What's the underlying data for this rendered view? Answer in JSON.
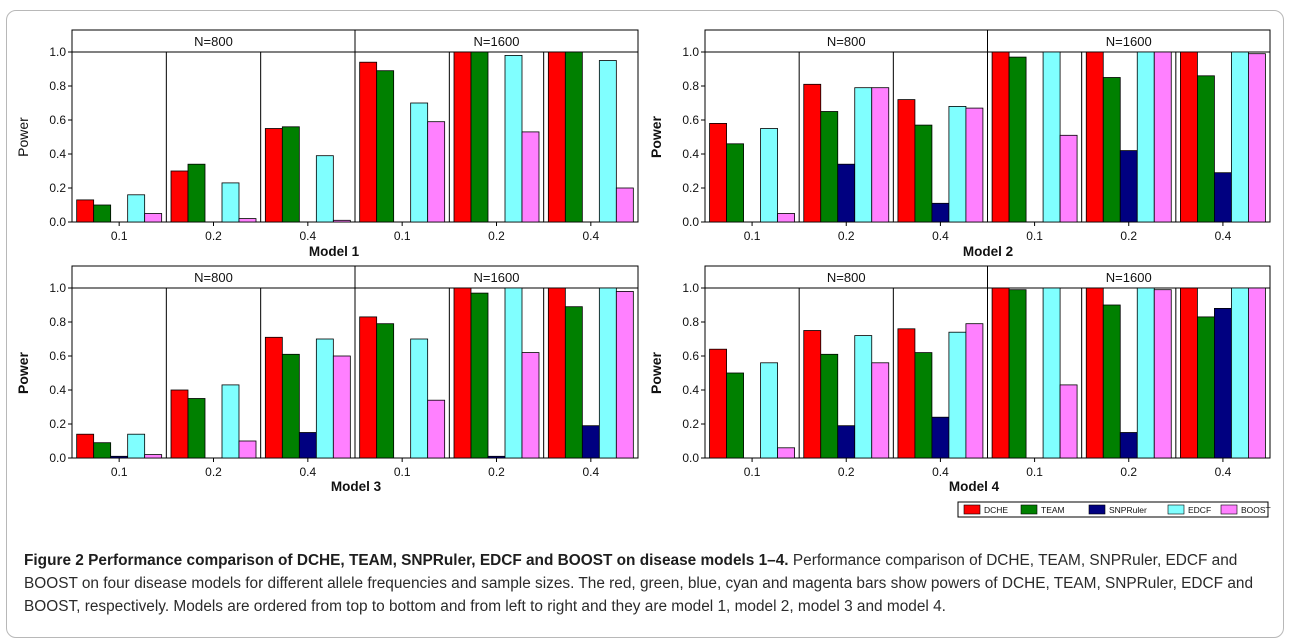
{
  "figure": {
    "caption_title": "Figure 2 Performance comparison of DCHE, TEAM, SNPRuler, EDCF and BOOST on disease models 1–4.",
    "caption_text": "Performance comparison of DCHE, TEAM, SNPRuler, EDCF and BOOST on four disease models for different allele frequencies and sample sizes. The red, green, blue, cyan and magenta bars show powers of DCHE, TEAM, SNPRuler, EDCF and BOOST, respectively. Models are ordered from top to bottom and from left to right and they are model 1, model 2, model 3 and model 4."
  },
  "legend": [
    {
      "name": "DCHE",
      "color": "#ff0000"
    },
    {
      "name": "TEAM",
      "color": "#008000"
    },
    {
      "name": "SNPRuler",
      "color": "#000080"
    },
    {
      "name": "EDCF",
      "color": "#80ffff"
    },
    {
      "name": "BOOST",
      "color": "#ff80ff"
    }
  ],
  "chart_data": [
    {
      "type": "bar",
      "title": "Model 1",
      "ylabel": "Power",
      "ylim": [
        0,
        1.0
      ],
      "yticks": [
        "0.0",
        "0.2",
        "0.4",
        "0.6",
        "0.8",
        "1.0"
      ],
      "groups": [
        {
          "label": "N=800",
          "categories": [
            "0.1",
            "0.2",
            "0.4"
          ],
          "values": [
            [
              0.13,
              0.1,
              0,
              0.16,
              0.05
            ],
            [
              0.3,
              0.34,
              0,
              0.23,
              0.02
            ],
            [
              0.55,
              0.56,
              0,
              0.39,
              0.01
            ]
          ]
        },
        {
          "label": "N=1600",
          "categories": [
            "0.1",
            "0.2",
            "0.4"
          ],
          "values": [
            [
              0.94,
              0.89,
              0,
              0.7,
              0.59
            ],
            [
              1.0,
              1.0,
              0,
              0.98,
              0.53
            ],
            [
              1.0,
              1.0,
              0,
              0.95,
              0.2
            ]
          ]
        }
      ]
    },
    {
      "type": "bar",
      "title": "Model 2",
      "ylabel": "Power",
      "ylim": [
        0,
        1.0
      ],
      "yticks": [
        "0.0",
        "0.2",
        "0.4",
        "0.6",
        "0.8",
        "1.0"
      ],
      "groups": [
        {
          "label": "N=800",
          "categories": [
            "0.1",
            "0.2",
            "0.4"
          ],
          "values": [
            [
              0.58,
              0.46,
              0,
              0.55,
              0.05
            ],
            [
              0.81,
              0.65,
              0.34,
              0.79,
              0.79
            ],
            [
              0.72,
              0.57,
              0.11,
              0.68,
              0.67
            ]
          ]
        },
        {
          "label": "N=1600",
          "categories": [
            "0.1",
            "0.2",
            "0.4"
          ],
          "values": [
            [
              1.0,
              0.97,
              0,
              1.0,
              0.51
            ],
            [
              1.0,
              0.85,
              0.42,
              1.0,
              1.0
            ],
            [
              1.0,
              0.86,
              0.29,
              1.0,
              0.99
            ]
          ]
        }
      ]
    },
    {
      "type": "bar",
      "title": "Model 3",
      "ylabel": "Power",
      "ylim": [
        0,
        1.0
      ],
      "yticks": [
        "0.0",
        "0.2",
        "0.4",
        "0.6",
        "0.8",
        "1.0"
      ],
      "groups": [
        {
          "label": "N=800",
          "categories": [
            "0.1",
            "0.2",
            "0.4"
          ],
          "values": [
            [
              0.14,
              0.09,
              0.01,
              0.14,
              0.02
            ],
            [
              0.4,
              0.35,
              0,
              0.43,
              0.1
            ],
            [
              0.71,
              0.61,
              0.15,
              0.7,
              0.6
            ]
          ]
        },
        {
          "label": "N=1600",
          "categories": [
            "0.1",
            "0.2",
            "0.4"
          ],
          "values": [
            [
              0.83,
              0.79,
              0,
              0.7,
              0.34
            ],
            [
              1.0,
              0.97,
              0.01,
              1.0,
              0.62
            ],
            [
              1.0,
              0.89,
              0.19,
              1.0,
              0.98
            ]
          ]
        }
      ]
    },
    {
      "type": "bar",
      "title": "Model 4",
      "ylabel": "Power",
      "ylim": [
        0,
        1.0
      ],
      "yticks": [
        "0.0",
        "0.2",
        "0.4",
        "0.6",
        "0.8",
        "1.0"
      ],
      "groups": [
        {
          "label": "N=800",
          "categories": [
            "0.1",
            "0.2",
            "0.4"
          ],
          "values": [
            [
              0.64,
              0.5,
              0,
              0.56,
              0.06
            ],
            [
              0.75,
              0.61,
              0.19,
              0.72,
              0.56
            ],
            [
              0.76,
              0.62,
              0.24,
              0.74,
              0.79
            ]
          ]
        },
        {
          "label": "N=1600",
          "categories": [
            "0.1",
            "0.2",
            "0.4"
          ],
          "values": [
            [
              1.0,
              0.99,
              0,
              1.0,
              0.43
            ],
            [
              1.0,
              0.9,
              0.15,
              1.0,
              0.99
            ],
            [
              1.0,
              0.83,
              0.88,
              1.0,
              1.0
            ]
          ]
        }
      ]
    }
  ]
}
